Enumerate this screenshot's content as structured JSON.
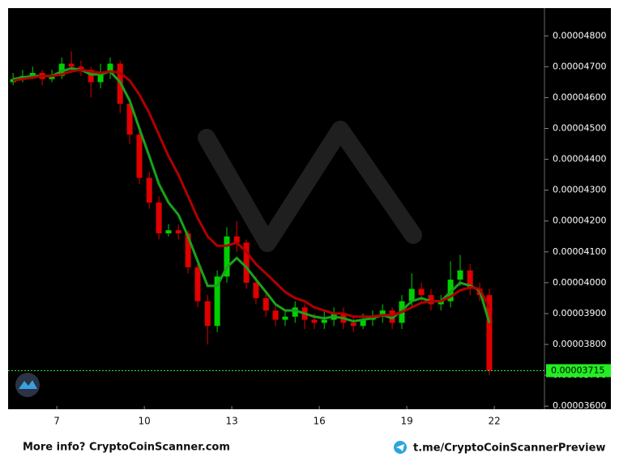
{
  "chart_data": {
    "type": "candlestick",
    "x": [
      5.5,
      5.83,
      6.17,
      6.5,
      6.83,
      7.17,
      7.5,
      7.83,
      8.17,
      8.5,
      8.83,
      9.17,
      9.5,
      9.83,
      10.17,
      10.5,
      10.83,
      11.17,
      11.5,
      11.83,
      12.17,
      12.5,
      12.83,
      13.17,
      13.5,
      13.83,
      14.17,
      14.5,
      14.83,
      15.17,
      15.5,
      15.83,
      16.17,
      16.5,
      16.83,
      17.17,
      17.5,
      17.83,
      18.17,
      18.5,
      18.83,
      19.17,
      19.5,
      19.83,
      20.17,
      20.5,
      20.83,
      21.17,
      21.5,
      21.83
    ],
    "open": [
      4.65e-05,
      4.66e-05,
      4.67e-05,
      4.68e-05,
      4.66e-05,
      4.67e-05,
      4.71e-05,
      4.7e-05,
      4.69e-05,
      4.65e-05,
      4.68e-05,
      4.71e-05,
      4.58e-05,
      4.48e-05,
      4.34e-05,
      4.26e-05,
      4.16e-05,
      4.17e-05,
      4.16e-05,
      4.05e-05,
      3.94e-05,
      3.86e-05,
      4.02e-05,
      4.15e-05,
      4.13e-05,
      4e-05,
      3.95e-05,
      3.91e-05,
      3.88e-05,
      3.89e-05,
      3.92e-05,
      3.88e-05,
      3.87e-05,
      3.88e-05,
      3.9e-05,
      3.87e-05,
      3.86e-05,
      3.88e-05,
      3.89e-05,
      3.91e-05,
      3.87e-05,
      3.94e-05,
      3.98e-05,
      3.96e-05,
      3.93e-05,
      3.94e-05,
      4.01e-05,
      4.04e-05,
      3.98e-05,
      3.96e-05
    ],
    "high": [
      4.68e-05,
      4.69e-05,
      4.7e-05,
      4.69e-05,
      4.69e-05,
      4.73e-05,
      4.75e-05,
      4.72e-05,
      4.7e-05,
      4.71e-05,
      4.73e-05,
      4.72e-05,
      4.6e-05,
      4.5e-05,
      4.36e-05,
      4.28e-05,
      4.19e-05,
      4.19e-05,
      4.17e-05,
      4.06e-05,
      3.96e-05,
      4.04e-05,
      4.18e-05,
      4.2e-05,
      4.14e-05,
      4.02e-05,
      3.97e-05,
      3.93e-05,
      3.91e-05,
      3.94e-05,
      3.93e-05,
      3.9e-05,
      3.91e-05,
      3.92e-05,
      3.92e-05,
      3.89e-05,
      3.9e-05,
      3.91e-05,
      3.93e-05,
      3.92e-05,
      3.96e-05,
      4.03e-05,
      4e-05,
      3.98e-05,
      3.96e-05,
      4.07e-05,
      4.09e-05,
      4.06e-05,
      4e-05,
      3.98e-05
    ],
    "low": [
      4.64e-05,
      4.65e-05,
      4.66e-05,
      4.64e-05,
      4.65e-05,
      4.66e-05,
      4.68e-05,
      4.67e-05,
      4.6e-05,
      4.63e-05,
      4.66e-05,
      4.55e-05,
      4.45e-05,
      4.32e-05,
      4.24e-05,
      4.14e-05,
      4.15e-05,
      4.14e-05,
      4.03e-05,
      3.92e-05,
      3.8e-05,
      3.84e-05,
      4e-05,
      4.1e-05,
      3.98e-05,
      3.93e-05,
      3.89e-05,
      3.86e-05,
      3.86e-05,
      3.87e-05,
      3.85e-05,
      3.85e-05,
      3.85e-05,
      3.86e-05,
      3.85e-05,
      3.84e-05,
      3.85e-05,
      3.86e-05,
      3.87e-05,
      3.85e-05,
      3.85e-05,
      3.92e-05,
      3.94e-05,
      3.91e-05,
      3.91e-05,
      3.92e-05,
      3.99e-05,
      3.96e-05,
      3.94e-05,
      3.7e-05
    ],
    "close": [
      4.66e-05,
      4.67e-05,
      4.68e-05,
      4.66e-05,
      4.67e-05,
      4.71e-05,
      4.7e-05,
      4.69e-05,
      4.65e-05,
      4.68e-05,
      4.71e-05,
      4.58e-05,
      4.48e-05,
      4.34e-05,
      4.26e-05,
      4.16e-05,
      4.17e-05,
      4.16e-05,
      4.05e-05,
      3.94e-05,
      3.86e-05,
      4.02e-05,
      4.15e-05,
      4.13e-05,
      4e-05,
      3.95e-05,
      3.91e-05,
      3.88e-05,
      3.89e-05,
      3.92e-05,
      3.88e-05,
      3.87e-05,
      3.88e-05,
      3.9e-05,
      3.87e-05,
      3.86e-05,
      3.88e-05,
      3.89e-05,
      3.91e-05,
      3.87e-05,
      3.94e-05,
      3.98e-05,
      3.96e-05,
      3.93e-05,
      3.94e-05,
      4.01e-05,
      4.04e-05,
      3.98e-05,
      3.96e-05,
      3.715e-05
    ],
    "up_color": "#00d000",
    "down_color": "#e00000",
    "lines": [
      {
        "color": "#1aa31a",
        "values": [
          4.66e-05,
          4.665e-05,
          4.67e-05,
          4.67e-05,
          4.67e-05,
          4.685e-05,
          4.695e-05,
          4.69e-05,
          4.675e-05,
          4.675e-05,
          4.685e-05,
          4.65e-05,
          4.59e-05,
          4.5e-05,
          4.41e-05,
          4.32e-05,
          4.26e-05,
          4.22e-05,
          4.15e-05,
          4.07e-05,
          3.99e-05,
          3.99e-05,
          4.05e-05,
          4.08e-05,
          4.05e-05,
          4.01e-05,
          3.97e-05,
          3.93e-05,
          3.91e-05,
          3.91e-05,
          3.9e-05,
          3.89e-05,
          3.885e-05,
          3.89e-05,
          3.885e-05,
          3.875e-05,
          3.88e-05,
          3.885e-05,
          3.895e-05,
          3.885e-05,
          3.91e-05,
          3.94e-05,
          3.95e-05,
          3.94e-05,
          3.94e-05,
          3.97e-05,
          4e-05,
          3.99e-05,
          3.975e-05,
          3.87e-05
        ]
      },
      {
        "color": "#b00000",
        "values": [
          4.655e-05,
          4.66e-05,
          4.665e-05,
          4.67e-05,
          4.67e-05,
          4.675e-05,
          4.685e-05,
          4.69e-05,
          4.685e-05,
          4.68e-05,
          4.685e-05,
          4.68e-05,
          4.655e-05,
          4.61e-05,
          4.55e-05,
          4.48e-05,
          4.41e-05,
          4.35e-05,
          4.28e-05,
          4.21e-05,
          4.15e-05,
          4.12e-05,
          4.12e-05,
          4.13e-05,
          4.1e-05,
          4.06e-05,
          4.03e-05,
          4e-05,
          3.97e-05,
          3.95e-05,
          3.94e-05,
          3.92e-05,
          3.91e-05,
          3.9e-05,
          3.9e-05,
          3.89e-05,
          3.89e-05,
          3.89e-05,
          3.895e-05,
          3.895e-05,
          3.905e-05,
          3.92e-05,
          3.935e-05,
          3.94e-05,
          3.94e-05,
          3.955e-05,
          3.975e-05,
          3.985e-05,
          3.98e-05,
          3.92e-05
        ]
      }
    ],
    "last_price": 3.715e-05,
    "xlim": [
      5.33,
      23.72
    ],
    "xticks": [
      7,
      10,
      13,
      16,
      19,
      22
    ],
    "ylim": [
      3.59e-05,
      4.89e-05
    ],
    "yticks": [
      {
        "value": 3.6e-05,
        "label": "0.00003600"
      },
      {
        "value": 3.7e-05,
        "label": "0.00003700"
      },
      {
        "value": 3.8e-05,
        "label": "0.00003800"
      },
      {
        "value": 3.9e-05,
        "label": "0.00003900"
      },
      {
        "value": 4e-05,
        "label": "0.00004000"
      },
      {
        "value": 4.1e-05,
        "label": "0.00004100"
      },
      {
        "value": 4.2e-05,
        "label": "0.00004200"
      },
      {
        "value": 4.3e-05,
        "label": "0.00004300"
      },
      {
        "value": 4.4e-05,
        "label": "0.00004400"
      },
      {
        "value": 4.5e-05,
        "label": "0.00004500"
      },
      {
        "value": 4.6e-05,
        "label": "0.00004600"
      },
      {
        "value": 4.7e-05,
        "label": "0.00004700"
      },
      {
        "value": 4.8e-05,
        "label": "0.00004800"
      }
    ]
  },
  "footer": {
    "left": "More info? CryptoCoinScanner.com",
    "right": "t.me/CryptoCoinScannerPreview"
  }
}
